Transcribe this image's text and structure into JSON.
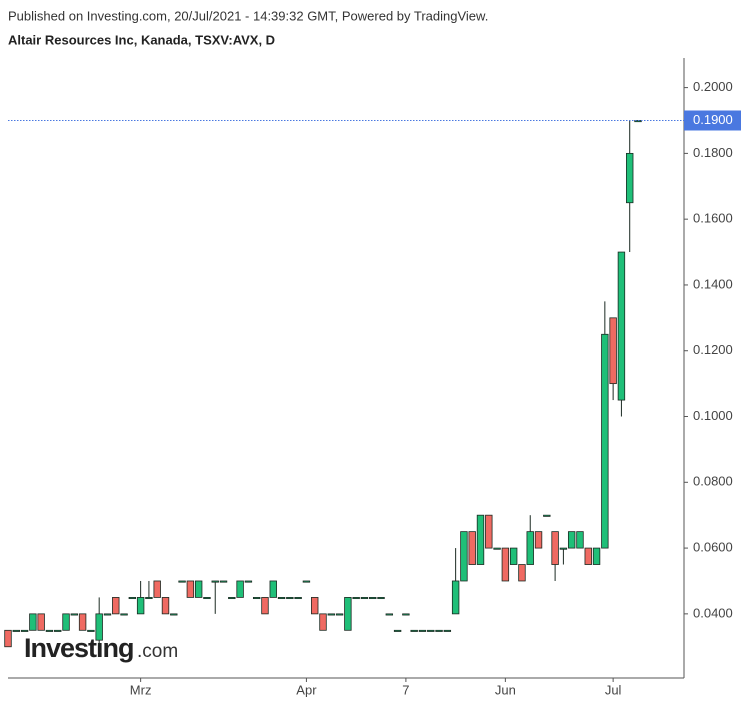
{
  "header": {
    "published": "Published on Investing.com, 20/Jul/2021 - 14:39:32 GMT, Powered by TradingView.",
    "instrument": "Altair Resources Inc, Kanada, TSXV:AVX, D"
  },
  "watermark": {
    "brand": "Investing",
    "suffix": ".com"
  },
  "chart_data": {
    "type": "candlestick",
    "categories": [
      null,
      null,
      null,
      null,
      null,
      null,
      null,
      null,
      null,
      null,
      null,
      null,
      null,
      null,
      null,
      null,
      "Mrz",
      null,
      null,
      null,
      null,
      null,
      null,
      null,
      null,
      null,
      null,
      null,
      null,
      null,
      null,
      null,
      null,
      null,
      null,
      null,
      "Apr",
      null,
      null,
      null,
      null,
      null,
      null,
      null,
      null,
      null,
      null,
      null,
      "7",
      null,
      null,
      null,
      null,
      null,
      null,
      null,
      null,
      null,
      null,
      null,
      "Jun",
      null,
      null,
      null,
      null,
      null,
      null,
      null,
      null,
      null,
      null,
      null,
      null,
      "Jul",
      null,
      null,
      null
    ],
    "open": [
      0.035,
      0.035,
      0.035,
      0.035,
      0.04,
      0.035,
      0.035,
      0.035,
      0.04,
      0.04,
      0.035,
      0.032,
      0.04,
      0.045,
      0.04,
      0.045,
      0.04,
      0.045,
      0.05,
      0.045,
      0.04,
      0.05,
      0.05,
      0.045,
      0.045,
      0.05,
      0.05,
      0.045,
      0.045,
      0.05,
      0.045,
      0.045,
      0.045,
      0.045,
      0.045,
      0.045,
      0.05,
      0.045,
      0.04,
      0.04,
      0.04,
      0.035,
      0.045,
      0.045,
      0.045,
      0.045,
      0.04,
      0.035,
      0.04,
      0.035,
      0.035,
      0.035,
      0.035,
      0.035,
      0.04,
      0.05,
      0.065,
      0.055,
      0.07,
      0.06,
      0.06,
      0.055,
      0.055,
      0.055,
      0.065,
      0.07,
      0.065,
      0.06,
      0.06,
      0.06,
      0.06,
      0.055,
      0.06,
      0.13,
      0.105,
      0.165,
      0.19
    ],
    "high": [
      0.035,
      0.035,
      0.035,
      0.04,
      0.04,
      0.035,
      0.035,
      0.04,
      0.04,
      0.04,
      0.035,
      0.045,
      0.04,
      0.045,
      0.04,
      0.045,
      0.05,
      0.05,
      0.05,
      0.045,
      0.04,
      0.05,
      0.05,
      0.05,
      0.045,
      0.05,
      0.05,
      0.045,
      0.05,
      0.05,
      0.045,
      0.045,
      0.05,
      0.045,
      0.045,
      0.045,
      0.05,
      0.045,
      0.04,
      0.04,
      0.04,
      0.045,
      0.045,
      0.045,
      0.045,
      0.045,
      0.04,
      0.035,
      0.04,
      0.035,
      0.035,
      0.035,
      0.035,
      0.035,
      0.06,
      0.065,
      0.065,
      0.07,
      0.07,
      0.06,
      0.06,
      0.06,
      0.055,
      0.07,
      0.065,
      0.07,
      0.065,
      0.06,
      0.065,
      0.065,
      0.06,
      0.06,
      0.135,
      0.13,
      0.15,
      0.19,
      0.19
    ],
    "low": [
      0.03,
      0.035,
      0.035,
      0.035,
      0.035,
      0.035,
      0.035,
      0.035,
      0.04,
      0.035,
      0.035,
      0.03,
      0.04,
      0.04,
      0.04,
      0.045,
      0.04,
      0.045,
      0.045,
      0.04,
      0.04,
      0.05,
      0.045,
      0.045,
      0.045,
      0.04,
      0.05,
      0.045,
      0.045,
      0.05,
      0.045,
      0.04,
      0.045,
      0.045,
      0.045,
      0.045,
      0.05,
      0.04,
      0.035,
      0.04,
      0.04,
      0.035,
      0.045,
      0.045,
      0.045,
      0.045,
      0.04,
      0.035,
      0.04,
      0.035,
      0.035,
      0.035,
      0.035,
      0.035,
      0.04,
      0.05,
      0.055,
      0.055,
      0.06,
      0.06,
      0.05,
      0.055,
      0.05,
      0.055,
      0.06,
      0.07,
      0.05,
      0.055,
      0.06,
      0.06,
      0.055,
      0.055,
      0.06,
      0.105,
      0.1,
      0.15,
      0.19
    ],
    "close": [
      0.03,
      0.035,
      0.035,
      0.04,
      0.035,
      0.035,
      0.035,
      0.04,
      0.04,
      0.035,
      0.035,
      0.04,
      0.04,
      0.04,
      0.04,
      0.045,
      0.045,
      0.045,
      0.045,
      0.04,
      0.04,
      0.05,
      0.045,
      0.05,
      0.045,
      0.05,
      0.05,
      0.045,
      0.05,
      0.05,
      0.045,
      0.04,
      0.05,
      0.045,
      0.045,
      0.045,
      0.05,
      0.04,
      0.035,
      0.04,
      0.04,
      0.045,
      0.045,
      0.045,
      0.045,
      0.045,
      0.04,
      0.035,
      0.04,
      0.035,
      0.035,
      0.035,
      0.035,
      0.035,
      0.05,
      0.065,
      0.055,
      0.07,
      0.06,
      0.06,
      0.05,
      0.06,
      0.05,
      0.065,
      0.06,
      0.07,
      0.055,
      0.06,
      0.065,
      0.065,
      0.055,
      0.06,
      0.125,
      0.11,
      0.15,
      0.18,
      0.19
    ],
    "up_color": "#1fbf78",
    "down_color": "#ef6a62",
    "edge_color": "#1b2a22",
    "ylim": [
      0.0205,
      0.209
    ],
    "yticks": [
      {
        "value": 0.04,
        "label": "0.0400"
      },
      {
        "value": 0.06,
        "label": "0.0600"
      },
      {
        "value": 0.08,
        "label": "0.0800"
      },
      {
        "value": 0.1,
        "label": "0.1000"
      },
      {
        "value": 0.12,
        "label": "0.1200"
      },
      {
        "value": 0.14,
        "label": "0.1400"
      },
      {
        "value": 0.16,
        "label": "0.1600"
      },
      {
        "value": 0.18,
        "label": "0.1800"
      },
      {
        "value": 0.2,
        "label": "0.2000"
      }
    ],
    "last_price": {
      "value": 0.19,
      "label": "0.1900"
    },
    "last_price_color": "#4a78e0",
    "grid": false
  }
}
